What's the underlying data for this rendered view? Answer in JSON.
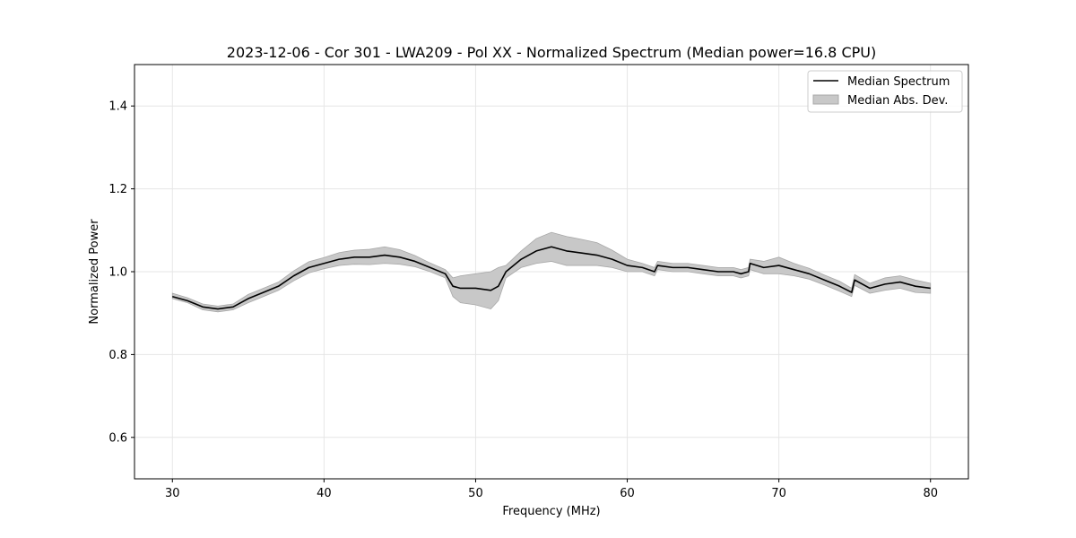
{
  "chart_data": {
    "type": "line",
    "title": "2023-12-06 - Cor 301 - LWA209 - Pol XX - Normalized Spectrum (Median power=16.8 CPU)",
    "xlabel": "Frequency (MHz)",
    "ylabel": "Normalized Power",
    "xlim": [
      27.5,
      82.5
    ],
    "ylim": [
      0.5,
      1.5
    ],
    "xticks": [
      30,
      40,
      50,
      60,
      70,
      80
    ],
    "yticks": [
      0.6,
      0.8,
      1.0,
      1.2,
      1.4
    ],
    "xtick_labels": [
      "30",
      "40",
      "50",
      "60",
      "70",
      "80"
    ],
    "ytick_labels": [
      "0.6",
      "0.8",
      "1.0",
      "1.2",
      "1.4"
    ],
    "grid": true,
    "legend_position": "top-right",
    "colors": {
      "median": "#000000",
      "band_fill": "#c8c8c8",
      "band_edge": "#a8a8a8",
      "grid": "#e6e6e6"
    },
    "series": [
      {
        "name": "Median Spectrum",
        "x": [
          30,
          31,
          32,
          33,
          34,
          35,
          36,
          37,
          38,
          39,
          40,
          41,
          42,
          43,
          44,
          45,
          46,
          47,
          48,
          48.5,
          49,
          50,
          51,
          51.5,
          52,
          53,
          54,
          55,
          56,
          57,
          58,
          59,
          60,
          61,
          61.8,
          62,
          63,
          64,
          65,
          66,
          67,
          67.5,
          68,
          68.1,
          69,
          70,
          71,
          72,
          73,
          74,
          74.8,
          75,
          76,
          77,
          78,
          79,
          80
        ],
        "values": [
          0.94,
          0.93,
          0.915,
          0.91,
          0.915,
          0.935,
          0.95,
          0.965,
          0.99,
          1.01,
          1.02,
          1.03,
          1.035,
          1.035,
          1.04,
          1.035,
          1.025,
          1.01,
          0.995,
          0.965,
          0.96,
          0.96,
          0.955,
          0.965,
          1.0,
          1.03,
          1.05,
          1.06,
          1.05,
          1.045,
          1.04,
          1.03,
          1.015,
          1.01,
          1.0,
          1.015,
          1.01,
          1.01,
          1.005,
          1.0,
          1.0,
          0.995,
          1.0,
          1.02,
          1.01,
          1.015,
          1.005,
          0.995,
          0.98,
          0.965,
          0.95,
          0.98,
          0.96,
          0.97,
          0.975,
          0.965,
          0.96
        ]
      },
      {
        "name": "Median Abs. Dev.",
        "x": [
          30,
          31,
          32,
          33,
          34,
          35,
          36,
          37,
          38,
          39,
          40,
          41,
          42,
          43,
          44,
          45,
          46,
          47,
          48,
          48.5,
          49,
          50,
          51,
          51.5,
          52,
          53,
          54,
          55,
          56,
          57,
          58,
          59,
          60,
          61,
          61.8,
          62,
          63,
          64,
          65,
          66,
          67,
          67.5,
          68,
          68.1,
          69,
          70,
          71,
          72,
          73,
          74,
          74.8,
          75,
          76,
          77,
          78,
          79,
          80
        ],
        "lower": [
          0.935,
          0.925,
          0.908,
          0.903,
          0.908,
          0.925,
          0.94,
          0.955,
          0.978,
          0.997,
          1.007,
          1.015,
          1.018,
          1.017,
          1.02,
          1.018,
          1.012,
          1.0,
          0.985,
          0.94,
          0.925,
          0.92,
          0.91,
          0.93,
          0.985,
          1.01,
          1.02,
          1.025,
          1.015,
          1.015,
          1.015,
          1.01,
          1.0,
          1.0,
          0.99,
          1.005,
          1.0,
          1.0,
          0.995,
          0.99,
          0.99,
          0.985,
          0.99,
          1.005,
          0.995,
          0.995,
          0.99,
          0.982,
          0.968,
          0.953,
          0.94,
          0.967,
          0.948,
          0.955,
          0.96,
          0.95,
          0.948
        ],
        "upper": [
          0.948,
          0.937,
          0.922,
          0.917,
          0.922,
          0.945,
          0.96,
          0.975,
          1.002,
          1.024,
          1.034,
          1.046,
          1.052,
          1.054,
          1.06,
          1.053,
          1.039,
          1.021,
          1.005,
          0.985,
          0.99,
          0.995,
          1.0,
          1.01,
          1.015,
          1.05,
          1.08,
          1.095,
          1.085,
          1.078,
          1.07,
          1.052,
          1.03,
          1.02,
          1.01,
          1.025,
          1.02,
          1.02,
          1.015,
          1.01,
          1.01,
          1.005,
          1.01,
          1.03,
          1.025,
          1.035,
          1.02,
          1.008,
          0.992,
          0.977,
          0.96,
          0.993,
          0.972,
          0.985,
          0.99,
          0.98,
          0.972
        ]
      }
    ]
  }
}
